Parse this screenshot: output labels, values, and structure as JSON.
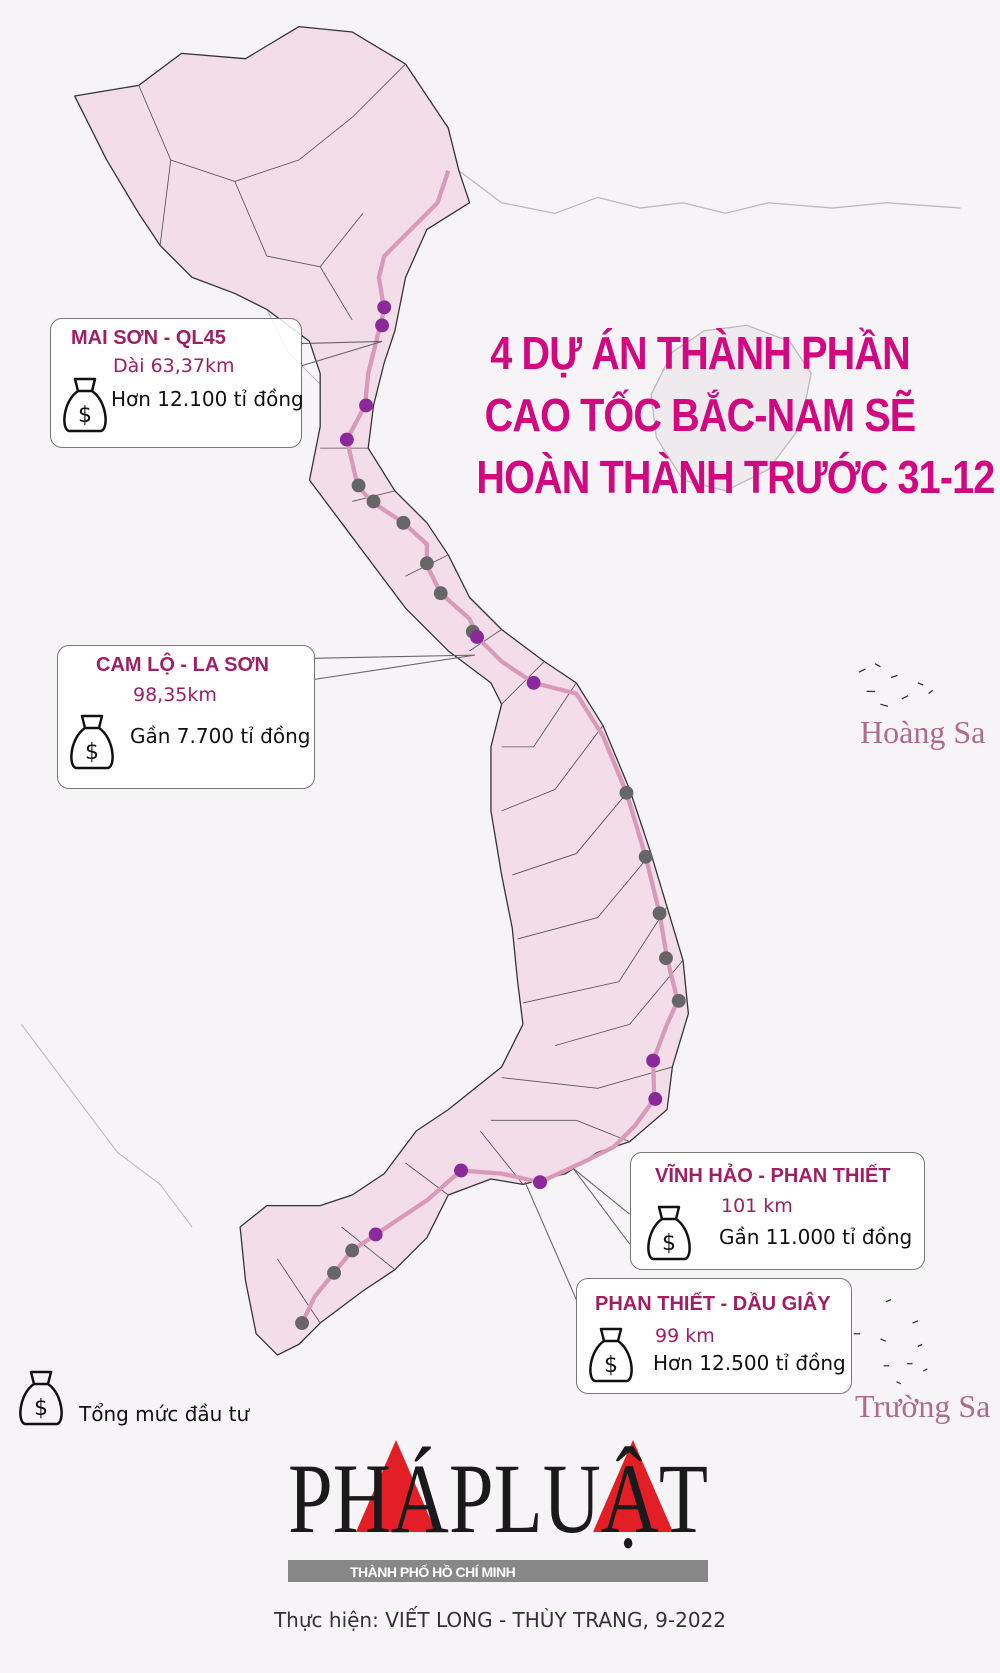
{
  "title": {
    "lines": [
      "4 DỰ ÁN THÀNH PHẦN",
      "CAO TỐC BẮC-NAM SẼ",
      "HOÀN THÀNH TRƯỚC 31-12"
    ],
    "color": "#d1087f"
  },
  "projects": [
    {
      "name": "MAI SƠN - QL45",
      "length": "Dài  63,37km",
      "cost": "Hơn 12.100 tỉ đồng"
    },
    {
      "name": "CAM LỘ - LA SƠN",
      "length": "98,35km",
      "cost": "Gần 7.700 tỉ đồng"
    },
    {
      "name": "VĨNH HẢO - PHAN THIẾT",
      "length": "101 km",
      "cost": "Gần 11.000 tỉ đồng"
    },
    {
      "name": "PHAN THIẾT - DẦU GIÂY",
      "length": "99 km",
      "cost": "Hơn 12.500 tỉ đồng"
    }
  ],
  "places": {
    "hoang_sa": "Hoàng Sa",
    "truong_sa": "Trường Sa"
  },
  "legend": {
    "icon": "money-bag-icon",
    "label": "Tổng mức đầu tư"
  },
  "logo": {
    "main": "PHÁPLUẬT",
    "sub": "THÀNH PHỐ HỒ CHÍ MINH"
  },
  "credit": "Thực hiện: VIẾT LONG - THÙY TRANG, 9-2022",
  "colors": {
    "land": "#f2dde8",
    "route": "#d89ab8",
    "completed_dot": "#8a2a9a",
    "other_dot": "#666666",
    "label": "#a01f64"
  }
}
